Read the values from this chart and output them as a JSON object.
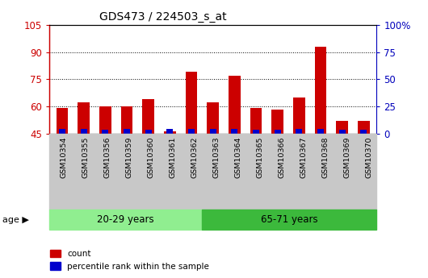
{
  "title": "GDS473 / 224503_s_at",
  "samples": [
    "GSM10354",
    "GSM10355",
    "GSM10356",
    "GSM10359",
    "GSM10360",
    "GSM10361",
    "GSM10362",
    "GSM10363",
    "GSM10364",
    "GSM10365",
    "GSM10366",
    "GSM10367",
    "GSM10368",
    "GSM10369",
    "GSM10370"
  ],
  "count_values": [
    59,
    62,
    60,
    60,
    64,
    46,
    79,
    62,
    77,
    59,
    58,
    65,
    93,
    52,
    52
  ],
  "percentile_values": [
    2.5,
    2.5,
    2.0,
    2.5,
    2.0,
    2.5,
    2.5,
    2.5,
    2.5,
    2.0,
    2.0,
    2.5,
    2.5,
    2.0,
    2.0
  ],
  "baseline": 45,
  "ymin": 45,
  "ymax": 105,
  "yticks_left": [
    45,
    60,
    75,
    90,
    105
  ],
  "ytick_labels_left": [
    "45",
    "60",
    "75",
    "90",
    "105"
  ],
  "yticks_right_vals": [
    0,
    25,
    50,
    75,
    100
  ],
  "ytick_labels_right": [
    "0",
    "25",
    "50",
    "75",
    "100%"
  ],
  "group1_label": "20-29 years",
  "group2_label": "65-71 years",
  "group1_count": 7,
  "group2_count": 8,
  "group1_color": "#90EE90",
  "group2_color": "#3CB93C",
  "bar_color_red": "#CC0000",
  "bar_color_blue": "#0000CC",
  "bar_width": 0.55,
  "blue_bar_width": 0.3,
  "age_label": "age",
  "legend_count": "count",
  "legend_percentile": "percentile rank within the sample",
  "bg_color": "#FFFFFF",
  "tick_bg_color": "#C8C8C8",
  "axis_color_left": "#CC0000",
  "axis_color_right": "#0000BB",
  "grid_yticks": [
    60,
    75,
    90
  ]
}
